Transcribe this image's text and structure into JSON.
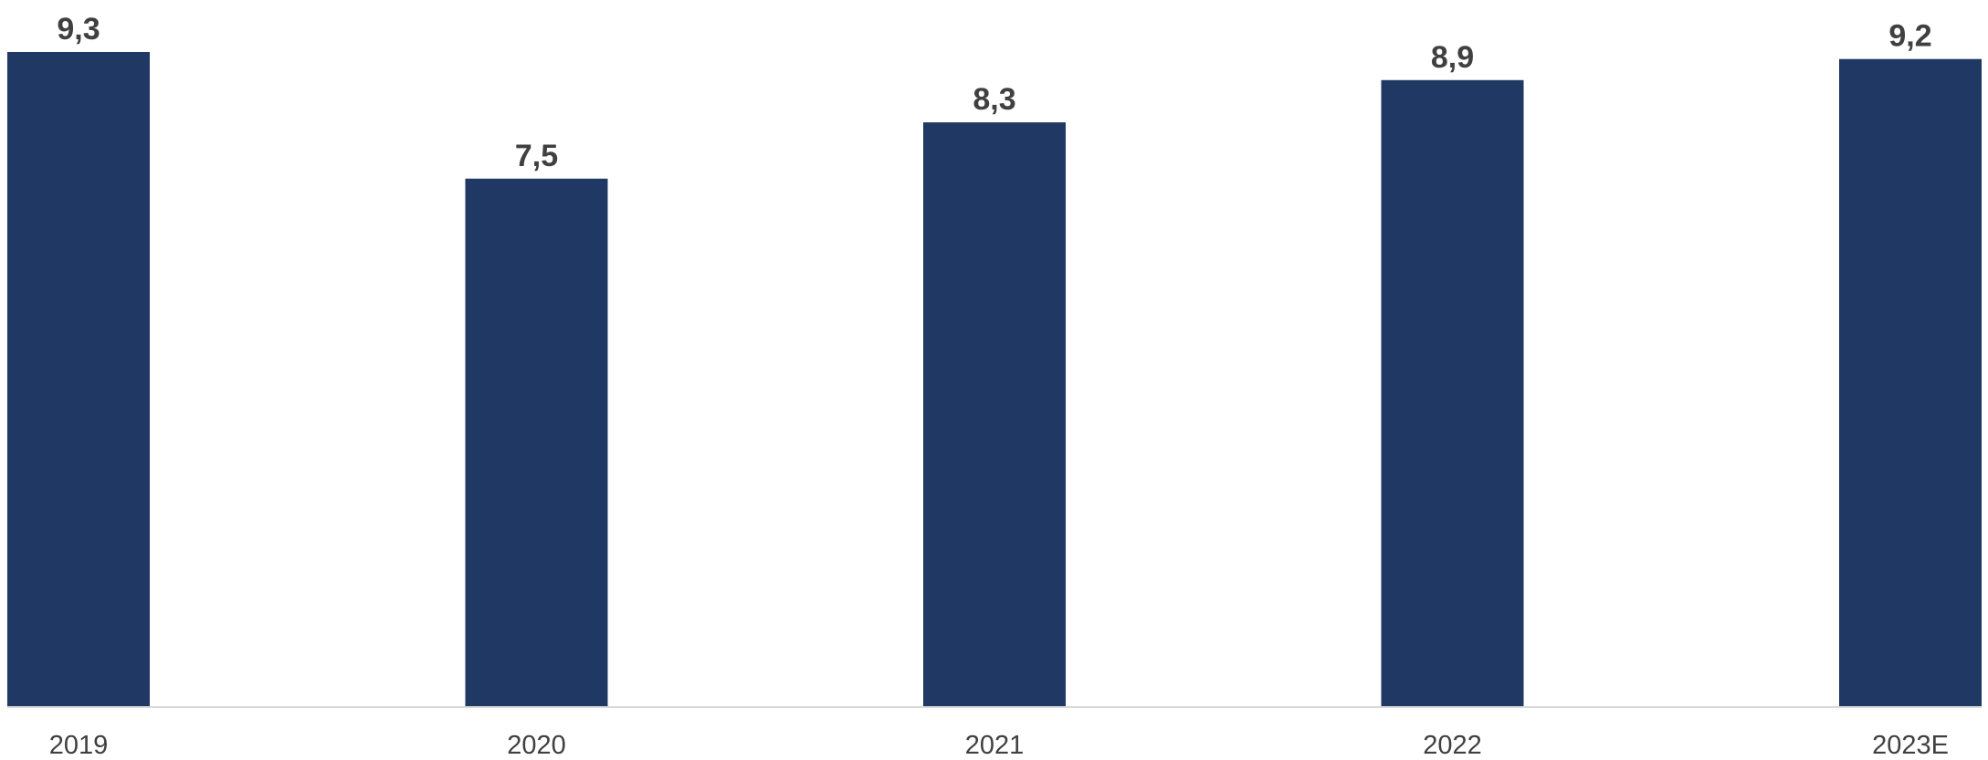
{
  "chart_data": {
    "type": "bar",
    "categories": [
      "2019",
      "2020",
      "2021",
      "2022",
      "2023E"
    ],
    "values": [
      9.3,
      7.5,
      8.3,
      8.9,
      9.2
    ],
    "value_labels": [
      "9,3",
      "7,5",
      "8,3",
      "8,9",
      "9,2"
    ],
    "title": "",
    "xlabel": "",
    "ylabel": "",
    "ylim": [
      0,
      9.3
    ],
    "grid": false,
    "legend": "none",
    "colors": {
      "bar": "#203864",
      "value_label": "#404040",
      "tick_label": "#404040",
      "axis": "#d9d9d9"
    }
  }
}
